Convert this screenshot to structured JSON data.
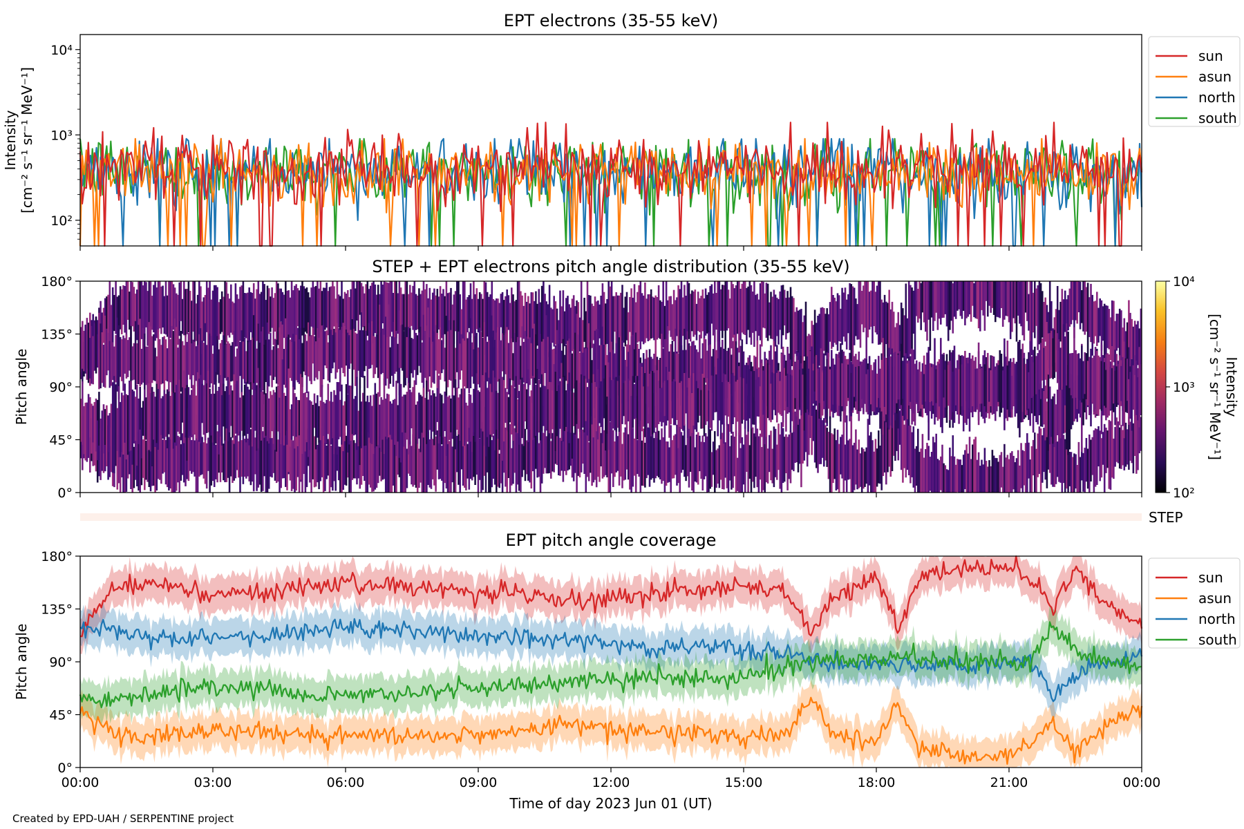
{
  "credit": "Created by EPD-UAH / SERPENTINE project",
  "colors": {
    "sun": "#d62728",
    "asun": "#ff7f0e",
    "north": "#1f77b4",
    "south": "#2ca02c",
    "colormap": [
      "#000004",
      "#280b54",
      "#65156e",
      "#9f2a63",
      "#d44842",
      "#f57d15",
      "#fac228",
      "#fcffa4"
    ]
  },
  "chart_data": [
    {
      "type": "line",
      "title": "EPT electrons (35-55 keV)",
      "ylabel": [
        "Intensity",
        "[cm⁻² s⁻¹ sr⁻¹ MeV⁻¹]"
      ],
      "yscale": "log",
      "ylim": [
        50,
        15000
      ],
      "yticks": [
        {
          "value": 100,
          "label": "10²"
        },
        {
          "value": 1000,
          "label": "10³"
        },
        {
          "value": 10000,
          "label": "10⁴"
        }
      ],
      "xlim_hours": [
        0,
        24
      ],
      "legend": "outside-right",
      "series": [
        {
          "name": "sun",
          "color": "#d62728",
          "typical_level": 400,
          "min": 50,
          "max": 1400
        },
        {
          "name": "asun",
          "color": "#ff7f0e",
          "typical_level": 380,
          "min": 50,
          "max": 900
        },
        {
          "name": "north",
          "color": "#1f77b4",
          "typical_level": 370,
          "min": 50,
          "max": 900
        },
        {
          "name": "south",
          "color": "#2ca02c",
          "typical_level": 380,
          "min": 50,
          "max": 900
        }
      ]
    },
    {
      "type": "heatmap",
      "title": "STEP + EPT electrons pitch angle distribution (35-55 keV)",
      "ylabel": "Pitch angle",
      "ylim": [
        0,
        180
      ],
      "yticks": [
        "0°",
        "45°",
        "90°",
        "135°",
        "180°"
      ],
      "xlim_hours": [
        0,
        24
      ],
      "colorbar": {
        "label": [
          "Intensity",
          "[cm⁻² s⁻¹ sr⁻¹ MeV⁻¹]"
        ],
        "scale": "log",
        "range": [
          100,
          10000
        ],
        "ticks": [
          "10²",
          "10³",
          "10⁴"
        ]
      },
      "typical_intensity": 300
    },
    {
      "type": "heatmap",
      "label": "STEP",
      "xlim_hours": [
        0,
        24
      ],
      "typical_intensity": 120
    },
    {
      "type": "line",
      "title": "EPT pitch angle coverage",
      "ylabel": "Pitch angle",
      "ylim": [
        0,
        180
      ],
      "yticks": [
        "0°",
        "45°",
        "90°",
        "135°",
        "180°"
      ],
      "xlabel": "Time of day 2023 Jun 01 (UT)",
      "xticks": [
        "00:00",
        "03:00",
        "06:00",
        "09:00",
        "12:00",
        "15:00",
        "18:00",
        "21:00",
        "00:00"
      ],
      "xlim_hours": [
        0,
        24
      ],
      "legend": "outside-right",
      "shaded_band_half_width_deg": 15,
      "series": [
        {
          "name": "sun",
          "color": "#d62728",
          "hours": [
            0,
            0.5,
            1,
            2,
            3,
            4,
            5,
            6,
            7,
            8,
            9,
            10,
            11,
            12,
            13,
            14,
            15,
            16,
            16.5,
            17,
            18,
            18.5,
            19,
            20,
            21,
            21.5,
            22,
            22.5,
            23,
            24
          ],
          "values": [
            115,
            140,
            158,
            155,
            148,
            150,
            152,
            155,
            155,
            152,
            150,
            148,
            140,
            145,
            148,
            152,
            155,
            150,
            110,
            145,
            160,
            120,
            165,
            170,
            172,
            160,
            135,
            170,
            145,
            120
          ]
        },
        {
          "name": "asun",
          "color": "#ff7f0e",
          "hours": [
            0,
            0.5,
            1,
            2,
            3,
            4,
            5,
            6,
            7,
            8,
            9,
            10,
            11,
            12,
            13,
            14,
            15,
            16,
            16.5,
            17,
            18,
            18.5,
            19,
            20,
            21,
            21.5,
            22,
            22.5,
            23,
            24
          ],
          "values": [
            50,
            35,
            25,
            28,
            32,
            30,
            28,
            27,
            27,
            27,
            28,
            30,
            38,
            33,
            30,
            28,
            27,
            30,
            60,
            30,
            20,
            55,
            15,
            10,
            10,
            20,
            40,
            12,
            30,
            50
          ]
        },
        {
          "name": "north",
          "color": "#1f77b4",
          "hours": [
            0,
            0.5,
            1,
            2,
            3,
            4,
            5,
            6,
            7,
            8,
            9,
            10,
            11,
            12,
            13,
            14,
            15,
            16,
            16.5,
            17,
            18,
            18.5,
            19,
            20,
            21,
            21.5,
            22,
            22.5,
            23,
            24
          ],
          "values": [
            120,
            118,
            115,
            110,
            112,
            110,
            115,
            120,
            118,
            115,
            112,
            110,
            108,
            105,
            100,
            105,
            100,
            95,
            90,
            90,
            88,
            85,
            88,
            88,
            90,
            90,
            60,
            80,
            90,
            95
          ]
        },
        {
          "name": "south",
          "color": "#2ca02c",
          "hours": [
            0,
            0.5,
            1,
            2,
            3,
            4,
            5,
            6,
            7,
            8,
            9,
            10,
            11,
            12,
            13,
            14,
            15,
            16,
            16.5,
            17,
            18,
            18.5,
            19,
            20,
            21,
            21.5,
            22,
            22.5,
            23,
            24
          ],
          "values": [
            60,
            55,
            60,
            65,
            70,
            68,
            62,
            62,
            62,
            65,
            68,
            70,
            72,
            75,
            78,
            75,
            78,
            85,
            90,
            92,
            90,
            95,
            92,
            90,
            90,
            92,
            120,
            100,
            92,
            85
          ]
        }
      ]
    }
  ]
}
